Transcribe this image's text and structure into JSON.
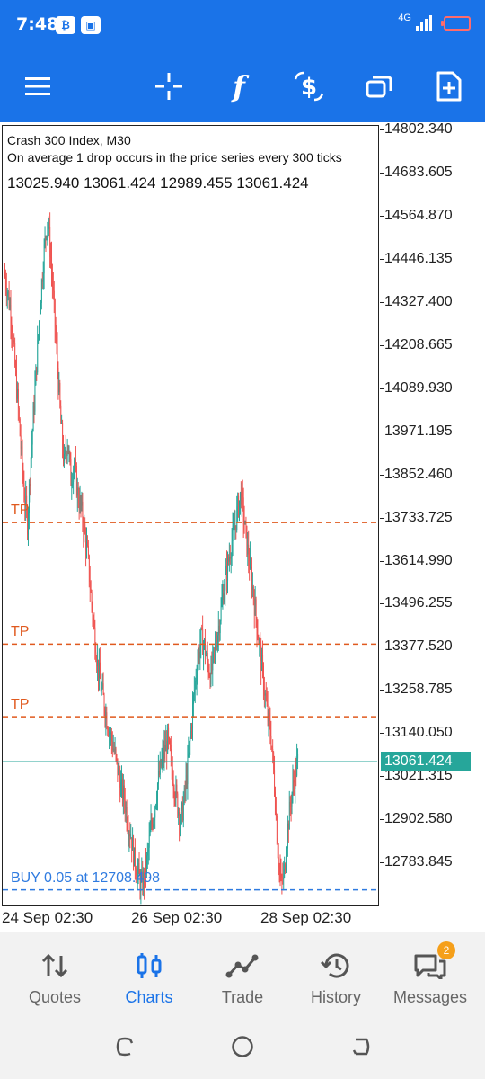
{
  "status_bar": {
    "time": "7:48",
    "network": "4G",
    "colors": {
      "bg": "#1a73e8",
      "battery": "#ff6b6b"
    }
  },
  "toolbar": {
    "buttons": [
      {
        "name": "menu",
        "icon": "hamburger-icon"
      },
      {
        "name": "crosshair",
        "icon": "crosshair-icon"
      },
      {
        "name": "indicators",
        "icon": "function-icon"
      },
      {
        "name": "trade",
        "icon": "dollar-icon"
      },
      {
        "name": "windows",
        "icon": "windows-icon"
      },
      {
        "name": "new-chart",
        "icon": "add-file-icon"
      }
    ]
  },
  "chart_header": {
    "title": "Crash 300 Index, M30",
    "subtitle": "On average 1 drop occurs in the price series every 300 ticks",
    "ohlc": "13025.940 13061.424 12989.455 13061.424"
  },
  "chart_data": {
    "type": "candlestick",
    "symbol": "Crash 300 Index",
    "timeframe": "M30",
    "y_ticks": [
      "14802.340",
      "14683.605",
      "14564.870",
      "14446.135",
      "14327.400",
      "14208.665",
      "14089.930",
      "13971.195",
      "13852.460",
      "13733.725",
      "13614.990",
      "13496.255",
      "13377.520",
      "13258.785",
      "13140.050",
      "13021.315",
      "12902.580",
      "12783.845"
    ],
    "ylim": [
      12665.11,
      14802.34
    ],
    "x_ticks": [
      "24 Sep 02:30",
      "26 Sep 02:30",
      "28 Sep 02:30"
    ],
    "current_price": "13061.424",
    "current_price_value": 13061.424,
    "levels": [
      {
        "label": "TP",
        "value": 13720,
        "color": "#e05a1f"
      },
      {
        "label": "TP",
        "value": 13385,
        "color": "#e05a1f"
      },
      {
        "label": "TP",
        "value": 13185,
        "color": "#e05a1f"
      },
      {
        "label": "BUY 0.05 at 12708.498",
        "value": 12708.498,
        "color": "#2f7be0"
      }
    ],
    "price_path": [
      14410,
      14360,
      14300,
      14180,
      14060,
      13930,
      13800,
      13720,
      13900,
      14050,
      14200,
      14350,
      14470,
      14560,
      14450,
      14300,
      14150,
      13990,
      13880,
      13950,
      13840,
      13890,
      13800,
      13760,
      13700,
      13630,
      13520,
      13420,
      13330,
      13270,
      13220,
      13170,
      13130,
      13090,
      13040,
      12990,
      12960,
      12900,
      12860,
      12790,
      12760,
      12720,
      12740,
      12800,
      12880,
      12930,
      13000,
      13050,
      13090,
      13120,
      13060,
      13000,
      12940,
      12900,
      12960,
      13050,
      13150,
      13260,
      13340,
      13400,
      13380,
      13330,
      13300,
      13360,
      13420,
      13480,
      13550,
      13600,
      13660,
      13700,
      13760,
      13800,
      13720,
      13640,
      13580,
      13500,
      13420,
      13340,
      13260,
      13180,
      13130,
      13000,
      12820,
      12720,
      12760,
      12880,
      12960,
      13020,
      13061
    ],
    "colors": {
      "bull": "#26a69a",
      "bear": "#ef5350",
      "current": "#26a69a"
    }
  },
  "bottom_nav": {
    "items": [
      {
        "label": "Quotes",
        "icon": "quotes-icon",
        "active": false
      },
      {
        "label": "Charts",
        "icon": "charts-icon",
        "active": true
      },
      {
        "label": "Trade",
        "icon": "trade-icon",
        "active": false
      },
      {
        "label": "History",
        "icon": "history-icon",
        "active": false
      },
      {
        "label": "Messages",
        "icon": "messages-icon",
        "active": false,
        "badge": "2"
      }
    ]
  },
  "system_nav": {
    "buttons": [
      "recents-icon",
      "home-icon",
      "back-icon"
    ]
  }
}
